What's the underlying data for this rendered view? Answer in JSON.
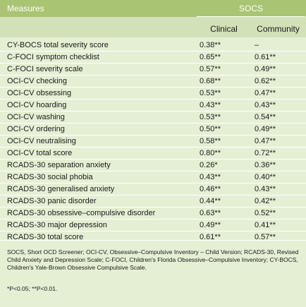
{
  "header": {
    "measures": "Measures",
    "socs": "SOCS",
    "clinical": "Clinical",
    "community": "Community"
  },
  "rows": [
    {
      "measure": "CY-BOCS total severity score",
      "clinical": "0.38**",
      "community": "–"
    },
    {
      "measure": "C-FOCI symptom checklist",
      "clinical": "0.65**",
      "community": "0.61**"
    },
    {
      "measure": "C-FOCI severity scale",
      "clinical": "0.57**",
      "community": "0.49**"
    },
    {
      "measure": "OCI-CV checking",
      "clinical": "0.68**",
      "community": "0.62**"
    },
    {
      "measure": "OCI-CV obsessing",
      "clinical": "0.53**",
      "community": "0.47**"
    },
    {
      "measure": "OCI-CV hoarding",
      "clinical": "0.43**",
      "community": "0.43**"
    },
    {
      "measure": "OCI-CV washing",
      "clinical": "0.53**",
      "community": "0.54**"
    },
    {
      "measure": "OCI-CV ordering",
      "clinical": "0.50**",
      "community": "0.49**"
    },
    {
      "measure": "OCI-CV neutralising",
      "clinical": "0.58**",
      "community": "0.47**"
    },
    {
      "measure": "OCI-CV total score",
      "clinical": "0.80**",
      "community": "0.72**"
    },
    {
      "measure": "RCADS-30 separation anxiety",
      "clinical": "0.26*",
      "community": "0.36**"
    },
    {
      "measure": "RCADS-30 social phobia",
      "clinical": "0.43**",
      "community": "0.40**"
    },
    {
      "measure": "RCADS-30 generalised anxiety",
      "clinical": "0.46**",
      "community": "0.43**"
    },
    {
      "measure": "RCADS-30 panic disorder",
      "clinical": "0.44**",
      "community": "0.42**"
    },
    {
      "measure": "RCADS-30 obsessive–compulsive disorder",
      "clinical": "0.63**",
      "community": "0.52**"
    },
    {
      "measure": "RCADS-30 major depression",
      "clinical": "0.49**",
      "community": "0.41**"
    },
    {
      "measure": "RCADS-30 total score",
      "clinical": "0.61**",
      "community": "0.57**"
    }
  ],
  "footnote": {
    "abbreviations": "SOCS, Short OCD Screener; OCI-CV, Obsessive–Compulsive Inventory – Child Version; RCADS-30, Revised Child Anxiety and Depression Scale; C-FOCI, Children's Florida Obsessive–Compulsive Inventory; CY-BOCS, Children's Yale-Brown Obsessive Compulsive Scale.",
    "significance": "*P<0.05; **P<0.01."
  }
}
